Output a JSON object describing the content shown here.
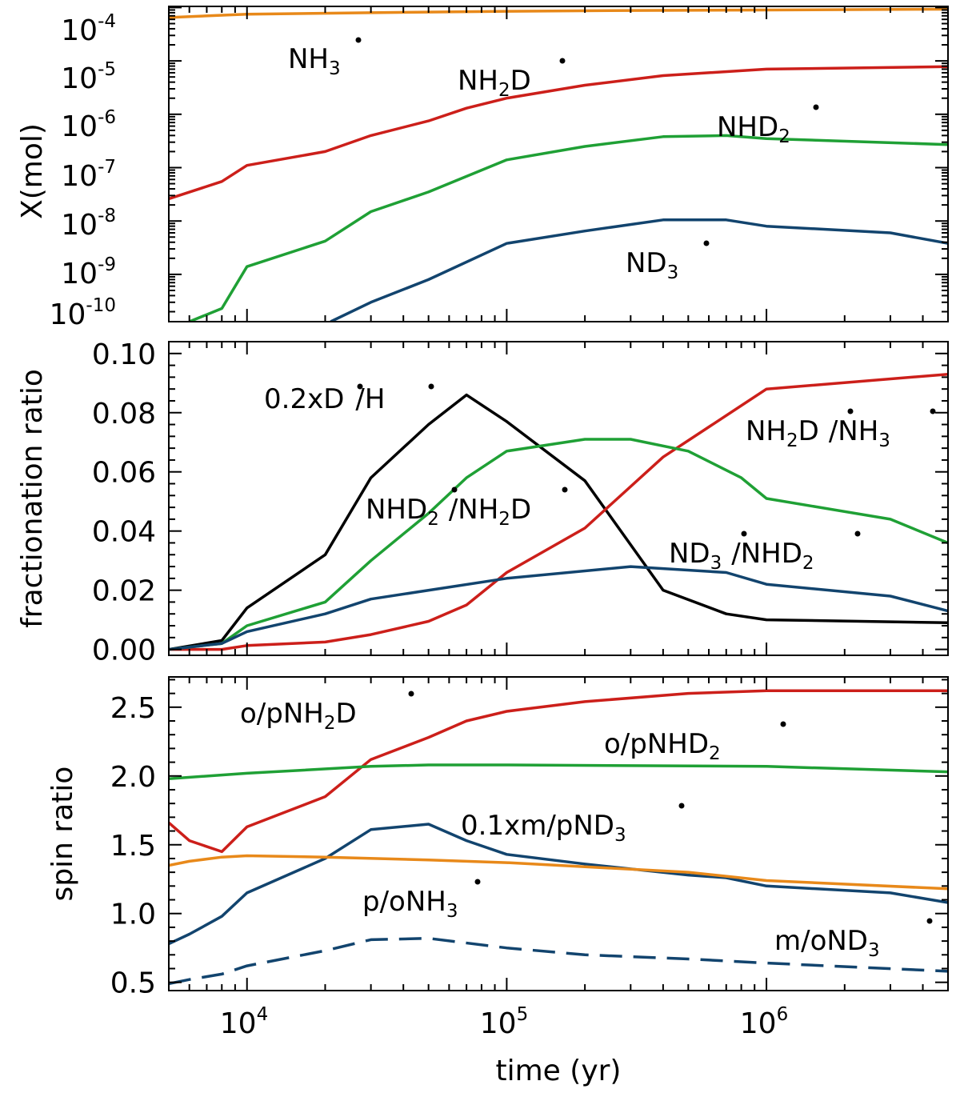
{
  "figure_title": "",
  "chart_data": [
    {
      "type": "line",
      "panel": "top",
      "ylabel": "X(mol)",
      "xlabel": "time (yr)",
      "xscale": "log",
      "yscale": "log",
      "xlim": [
        5000,
        5000000
      ],
      "ylim": [
        1.3e-10,
        0.000105
      ],
      "yticks": [
        1e-10,
        1e-09,
        1e-08,
        1e-07,
        1e-06,
        1e-05,
        0.0001
      ],
      "ytick_labels": [
        {
          "base": "10",
          "exp": "-10"
        },
        {
          "base": "10",
          "exp": "-9"
        },
        {
          "base": "10",
          "exp": "-8"
        },
        {
          "base": "10",
          "exp": "-7"
        },
        {
          "base": "10",
          "exp": "-6"
        },
        {
          "base": "10",
          "exp": "-5"
        },
        {
          "base": "10",
          "exp": "-4"
        }
      ],
      "series": [
        {
          "name": "NH3*",
          "color": "#e8891a",
          "dashed": false,
          "x": [
            5000,
            10000,
            30000,
            100000,
            300000,
            1000000,
            5000000
          ],
          "y": [
            6.5e-05,
            7.5e-05,
            8e-05,
            8.5e-05,
            8.8e-05,
            9e-05,
            9.3e-05
          ]
        },
        {
          "name": "NH2D*",
          "color": "#cc1f1a",
          "dashed": false,
          "x": [
            5000,
            8000,
            10000,
            20000,
            30000,
            50000,
            70000,
            100000,
            200000,
            400000,
            1000000,
            5000000
          ],
          "y": [
            2.6e-08,
            5.5e-08,
            1.1e-07,
            2e-07,
            4e-07,
            7.5e-07,
            1.3e-06,
            2e-06,
            3.5e-06,
            5.3e-06,
            7e-06,
            7.8e-06
          ]
        },
        {
          "name": "NHD2*",
          "color": "#1fa035",
          "dashed": false,
          "x": [
            6000,
            8000,
            10000,
            20000,
            30000,
            50000,
            100000,
            200000,
            400000,
            700000,
            1000000,
            5000000
          ],
          "y": [
            1.3e-10,
            2.3e-10,
            1.4e-09,
            4.2e-09,
            1.5e-08,
            3.5e-08,
            1.4e-07,
            2.5e-07,
            3.8e-07,
            4e-07,
            3.5e-07,
            2.7e-07
          ]
        },
        {
          "name": "ND3*",
          "color": "#12446e",
          "dashed": false,
          "x": [
            21000,
            30000,
            50000,
            100000,
            200000,
            400000,
            700000,
            1000000,
            3000000,
            5000000
          ],
          "y": [
            1.3e-10,
            3e-10,
            8e-10,
            3.8e-09,
            6.5e-09,
            1.05e-08,
            1.05e-08,
            8e-09,
            6e-09,
            3.8e-09
          ]
        }
      ],
      "annotations": [
        {
          "base": "NH",
          "sub": "3",
          "tail": ""
        },
        {
          "base": "NH",
          "sub": "2",
          "tail": "D"
        },
        {
          "base": "NHD",
          "sub": "2",
          "tail": ""
        },
        {
          "base": "ND",
          "sub": "3",
          "tail": ""
        }
      ]
    },
    {
      "type": "line",
      "panel": "middle",
      "ylabel": "fractionation ratio",
      "xscale": "log",
      "yscale": "linear",
      "xlim": [
        5000,
        5000000
      ],
      "ylim": [
        -0.002,
        0.104
      ],
      "yticks": [
        0.0,
        0.02,
        0.04,
        0.06,
        0.08,
        0.1
      ],
      "ytick_labels": [
        "0.00",
        "0.02",
        "0.04",
        "0.06",
        "0.08",
        "0.10"
      ],
      "series": [
        {
          "name": "0.2xD*/H*",
          "color": "#000000",
          "dashed": false,
          "x": [
            5000,
            8000,
            10000,
            20000,
            30000,
            50000,
            70000,
            100000,
            200000,
            400000,
            700000,
            1000000,
            5000000
          ],
          "y": [
            0.0,
            0.003,
            0.014,
            0.032,
            0.058,
            0.076,
            0.086,
            0.077,
            0.057,
            0.02,
            0.012,
            0.01,
            0.009
          ]
        },
        {
          "name": "NH2D*/NH3*",
          "color": "#cc1f1a",
          "dashed": false,
          "x": [
            5000,
            8000,
            10000,
            20000,
            30000,
            50000,
            70000,
            100000,
            200000,
            400000,
            1000000,
            5000000
          ],
          "y": [
            0.0,
            0.0,
            0.0013,
            0.0025,
            0.005,
            0.0095,
            0.015,
            0.026,
            0.041,
            0.065,
            0.088,
            0.093
          ]
        },
        {
          "name": "NHD2*/NH2D*",
          "color": "#1fa035",
          "dashed": false,
          "x": [
            5000,
            8000,
            10000,
            20000,
            30000,
            50000,
            70000,
            100000,
            200000,
            300000,
            500000,
            800000,
            1000000,
            3000000,
            5000000
          ],
          "y": [
            0.0,
            0.002,
            0.008,
            0.016,
            0.03,
            0.046,
            0.058,
            0.067,
            0.071,
            0.071,
            0.067,
            0.058,
            0.051,
            0.044,
            0.036
          ]
        },
        {
          "name": "ND3*/NHD2*",
          "color": "#12446e",
          "dashed": false,
          "x": [
            5000,
            8000,
            10000,
            20000,
            30000,
            100000,
            300000,
            700000,
            1000000,
            3000000,
            5000000
          ],
          "y": [
            0.0,
            0.002,
            0.006,
            0.012,
            0.017,
            0.024,
            0.028,
            0.026,
            0.022,
            0.018,
            0.013
          ]
        }
      ],
      "annotations": [
        {
          "text": "0.2xD",
          "mid": "/H"
        },
        {
          "base": "NH",
          "sub": "2",
          "tail": "D",
          "sep": "/NH",
          "sub2": "3"
        },
        {
          "base": "NHD",
          "sub": "2",
          "sep": "/NH",
          "sub2": "2",
          "tail2": "D"
        },
        {
          "base": "ND",
          "sub": "3",
          "sep": "/NHD",
          "sub2": "2"
        }
      ]
    },
    {
      "type": "line",
      "panel": "bottom",
      "ylabel": "spin ratio",
      "xscale": "log",
      "yscale": "linear",
      "xlim": [
        5000,
        5000000
      ],
      "ylim": [
        0.44,
        2.72
      ],
      "yticks": [
        0.5,
        1.0,
        1.5,
        2.0,
        2.5
      ],
      "ytick_labels": [
        "0.5",
        "1.0",
        "1.5",
        "2.0",
        "2.5"
      ],
      "xticks": [
        10000,
        100000,
        1000000
      ],
      "xtick_labels": [
        {
          "base": "10",
          "exp": "4"
        },
        {
          "base": "10",
          "exp": "5"
        },
        {
          "base": "10",
          "exp": "6"
        }
      ],
      "series": [
        {
          "name": "o/pNH2D*",
          "color": "#cc1f1a",
          "dashed": false,
          "x": [
            5000,
            6000,
            8000,
            10000,
            20000,
            30000,
            50000,
            70000,
            100000,
            200000,
            500000,
            1000000,
            5000000
          ],
          "y": [
            1.66,
            1.53,
            1.45,
            1.63,
            1.85,
            2.12,
            2.28,
            2.4,
            2.47,
            2.54,
            2.6,
            2.62,
            2.62
          ]
        },
        {
          "name": "o/pNHD2*",
          "color": "#1fa035",
          "dashed": false,
          "x": [
            5000,
            10000,
            30000,
            50000,
            100000,
            1000000,
            5000000
          ],
          "y": [
            1.98,
            2.02,
            2.07,
            2.08,
            2.08,
            2.07,
            2.03
          ]
        },
        {
          "name": "0.1xm/pND3*",
          "color": "#12446e",
          "dashed": false,
          "x": [
            5000,
            6000,
            8000,
            10000,
            20000,
            30000,
            50000,
            70000,
            100000,
            200000,
            500000,
            700000,
            1000000,
            3000000,
            5000000
          ],
          "y": [
            0.78,
            0.85,
            0.98,
            1.15,
            1.4,
            1.61,
            1.65,
            1.53,
            1.43,
            1.36,
            1.28,
            1.26,
            1.2,
            1.15,
            1.08
          ]
        },
        {
          "name": "p/oNH3*",
          "color": "#e8891a",
          "dashed": false,
          "x": [
            5000,
            6000,
            8000,
            10000,
            20000,
            50000,
            100000,
            200000,
            500000,
            1000000,
            5000000
          ],
          "y": [
            1.35,
            1.38,
            1.41,
            1.42,
            1.41,
            1.39,
            1.37,
            1.34,
            1.3,
            1.24,
            1.18
          ]
        },
        {
          "name": "m/oND3*",
          "color": "#12446e",
          "dashed": true,
          "x": [
            5000,
            6000,
            8000,
            10000,
            20000,
            30000,
            50000,
            100000,
            200000,
            500000,
            1000000,
            5000000
          ],
          "y": [
            0.49,
            0.52,
            0.56,
            0.62,
            0.73,
            0.81,
            0.82,
            0.75,
            0.7,
            0.67,
            0.64,
            0.58
          ]
        }
      ],
      "annotations": [
        {
          "base": "o/pNH",
          "sub": "2",
          "tail": "D"
        },
        {
          "base": "o/pNHD",
          "sub": "2",
          "tail": ""
        },
        {
          "base": "0.1xm/pND",
          "sub": "3",
          "tail": ""
        },
        {
          "base": "p/oNH",
          "sub": "3",
          "tail": ""
        },
        {
          "base": "m/oND",
          "sub": "3",
          "tail": ""
        }
      ]
    }
  ]
}
